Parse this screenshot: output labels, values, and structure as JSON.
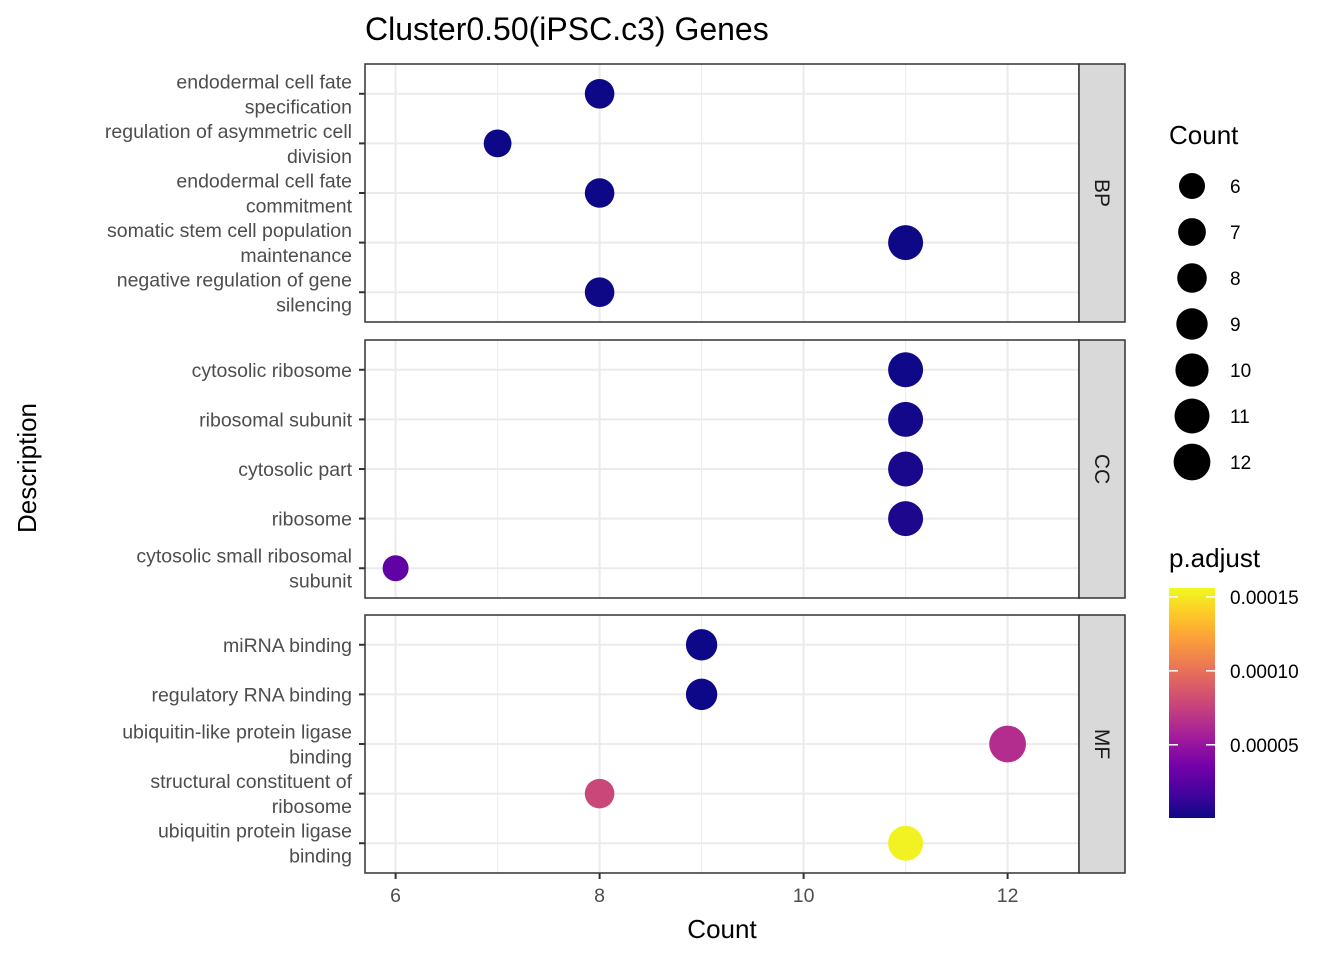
{
  "chart_data": {
    "type": "scatter",
    "title": "Cluster0.50(iPSC.c3) Genes",
    "xlabel": "Count",
    "ylabel": "Description",
    "xlim": [
      5.7,
      12.7
    ],
    "xticks": [
      6,
      8,
      10,
      12
    ],
    "grid": true,
    "facets": [
      {
        "name": "BP",
        "points": [
          {
            "label": [
              "endodermal cell fate",
              "specification"
            ],
            "count": 8,
            "p_adjust": 5e-07
          },
          {
            "label": [
              "regulation of asymmetric cell",
              "division"
            ],
            "count": 7,
            "p_adjust": 5e-07
          },
          {
            "label": [
              "endodermal cell fate",
              "commitment"
            ],
            "count": 8,
            "p_adjust": 5e-07
          },
          {
            "label": [
              "somatic stem cell population",
              "maintenance"
            ],
            "count": 11,
            "p_adjust": 8e-07
          },
          {
            "label": [
              "negative regulation of gene",
              "silencing"
            ],
            "count": 8,
            "p_adjust": 8e-07
          }
        ]
      },
      {
        "name": "CC",
        "points": [
          {
            "label": [
              "cytosolic ribosome"
            ],
            "count": 11,
            "p_adjust": 1e-06
          },
          {
            "label": [
              "ribosomal subunit"
            ],
            "count": 11,
            "p_adjust": 2e-06
          },
          {
            "label": [
              "cytosolic part"
            ],
            "count": 11,
            "p_adjust": 4e-06
          },
          {
            "label": [
              "ribosome"
            ],
            "count": 11,
            "p_adjust": 5e-06
          },
          {
            "label": [
              "cytosolic small ribosomal",
              "subunit"
            ],
            "count": 6,
            "p_adjust": 2.8e-05
          }
        ]
      },
      {
        "name": "MF",
        "points": [
          {
            "label": [
              "miRNA binding"
            ],
            "count": 9,
            "p_adjust": 5e-07
          },
          {
            "label": [
              "regulatory RNA binding"
            ],
            "count": 9,
            "p_adjust": 5e-07
          },
          {
            "label": [
              "ubiquitin-like protein ligase",
              "binding"
            ],
            "count": 12,
            "p_adjust": 6.4e-05
          },
          {
            "label": [
              "structural constituent of",
              "ribosome"
            ],
            "count": 8,
            "p_adjust": 7.8e-05
          },
          {
            "label": [
              "ubiquitin protein ligase",
              "binding"
            ],
            "count": 11,
            "p_adjust": 0.000153
          }
        ]
      }
    ],
    "size_legend": {
      "title": "Count",
      "values": [
        6,
        7,
        8,
        9,
        10,
        11,
        12
      ]
    },
    "color_legend": {
      "title": "p.adjust",
      "min": 5e-07,
      "max": 0.000156,
      "ticks": [
        5e-05,
        0.0001,
        0.00015
      ],
      "tick_labels": [
        "0.00005",
        "0.00010",
        "0.00015"
      ],
      "colormap": "plasma"
    },
    "legend_position": "right"
  },
  "colors": {
    "panel_border": "#333333",
    "grid": "#ebebeb",
    "strip_fill": "#d9d9d9",
    "plasma_stops": [
      "#0d0887",
      "#46039f",
      "#7201a8",
      "#9c179e",
      "#bd3786",
      "#d8576b",
      "#ed7953",
      "#fb9f3a",
      "#fdca26",
      "#f0f921"
    ]
  }
}
